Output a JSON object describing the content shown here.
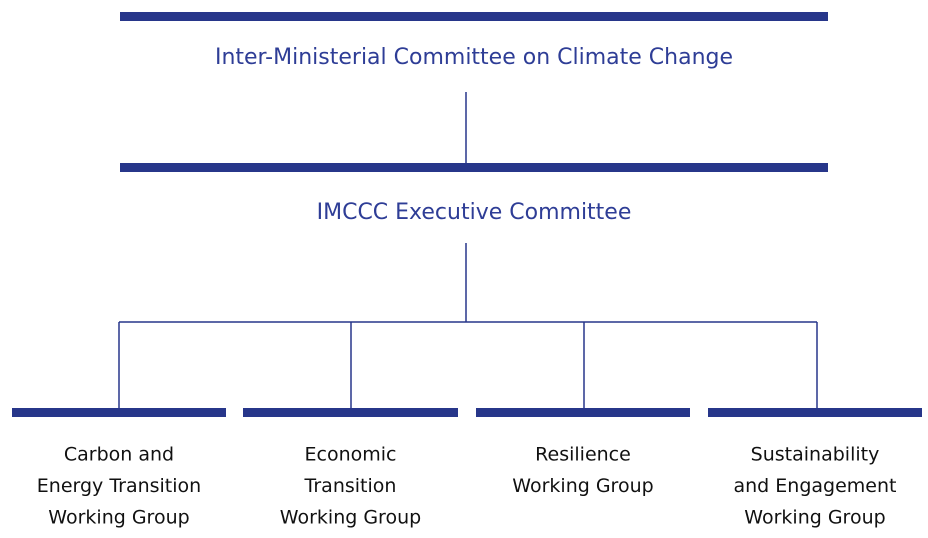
{
  "top": {
    "label": "Inter-Ministerial Committee on Climate Change"
  },
  "executive": {
    "label": "IMCCC Executive Committee"
  },
  "groups": [
    {
      "lines": [
        "Carbon and",
        "Energy Transition",
        "Working Group"
      ]
    },
    {
      "lines": [
        "Economic",
        "Transition",
        "Working Group"
      ]
    },
    {
      "lines": [
        "Resilience",
        "Working Group"
      ]
    },
    {
      "lines": [
        "Sustainability",
        "and Engagement",
        "Working Group"
      ]
    }
  ]
}
